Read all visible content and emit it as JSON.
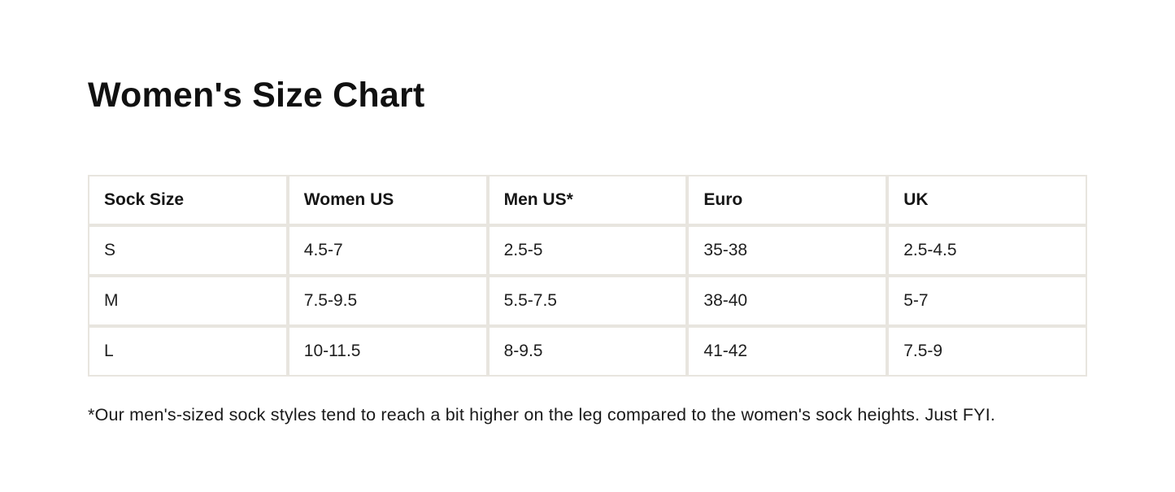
{
  "page": {
    "background_color": "#ffffff",
    "text_color": "#1c1c1c"
  },
  "title": "Women's Size Chart",
  "table": {
    "border_color": "#e8e5df",
    "headers": [
      "Sock Size",
      "Women US",
      "Men US*",
      "Euro",
      "UK"
    ],
    "rows": [
      [
        "S",
        "4.5-7",
        "2.5-5",
        "35-38",
        "2.5-4.5"
      ],
      [
        "M",
        "7.5-9.5",
        "5.5-7.5",
        "38-40",
        "5-7"
      ],
      [
        "L",
        "10-11.5",
        "8-9.5",
        "41-42",
        "7.5-9"
      ]
    ]
  },
  "footnote": "*Our men's-sized sock styles tend to reach a bit higher on the leg compared to the women's sock heights. Just FYI."
}
